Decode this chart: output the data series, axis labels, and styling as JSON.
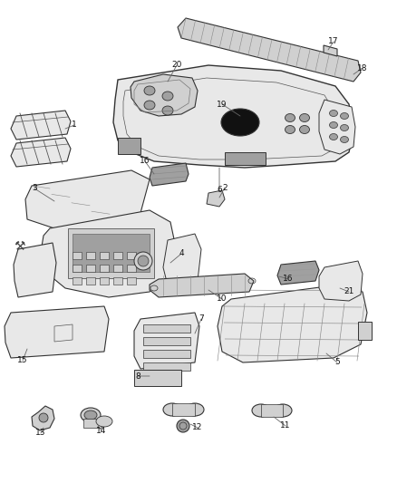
{
  "bg_color": "#ffffff",
  "fig_width": 4.38,
  "fig_height": 5.33,
  "dpi": 100,
  "ec": "#333333",
  "fc_light": "#e8e8e8",
  "fc_mid": "#d0d0d0",
  "fc_dark": "#a0a0a0",
  "lw_main": 0.8,
  "lw_detail": 0.5,
  "text_color": "#111111",
  "leader_color": "#666666",
  "label_fontsize": 6.5
}
